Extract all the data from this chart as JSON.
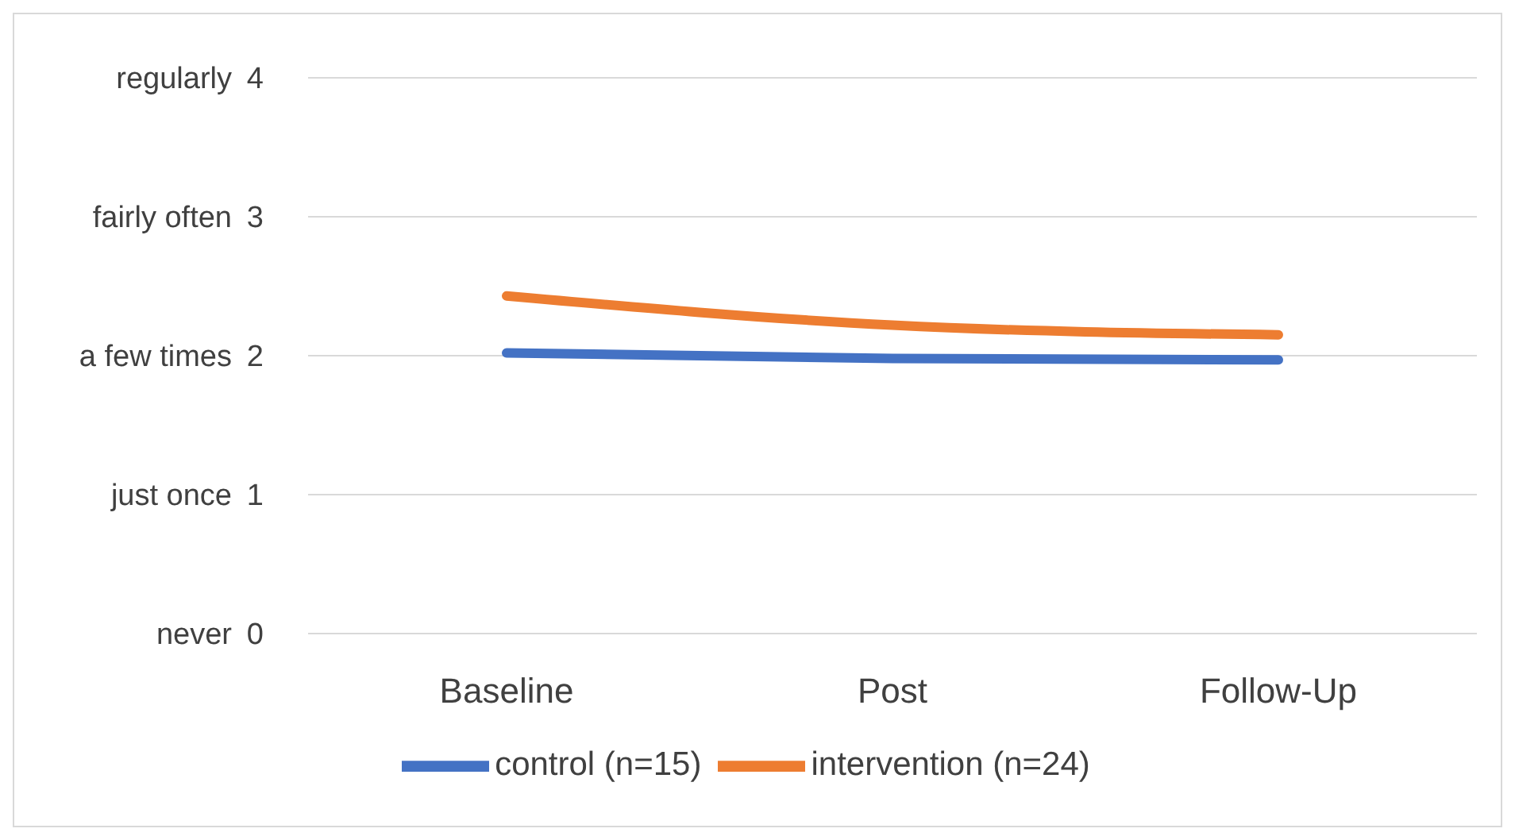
{
  "chart_data": {
    "type": "line",
    "categories": [
      "Baseline",
      "Post",
      "Follow-Up"
    ],
    "series": [
      {
        "name": "control (n=15)",
        "color": "#4472c4",
        "values": [
          2.02,
          1.98,
          1.97
        ]
      },
      {
        "name": "intervention (n=24)",
        "color": "#ed7d31",
        "values": [
          2.43,
          2.22,
          2.15
        ]
      }
    ],
    "ylim": [
      0,
      4
    ],
    "yticks": [
      0,
      1,
      2,
      3,
      4
    ],
    "annotations": [
      "never",
      "just once",
      "a few times",
      "fairly often",
      "regularly"
    ],
    "grid": "y",
    "legend": "bottom",
    "marker": "none",
    "line_style": "solid"
  }
}
